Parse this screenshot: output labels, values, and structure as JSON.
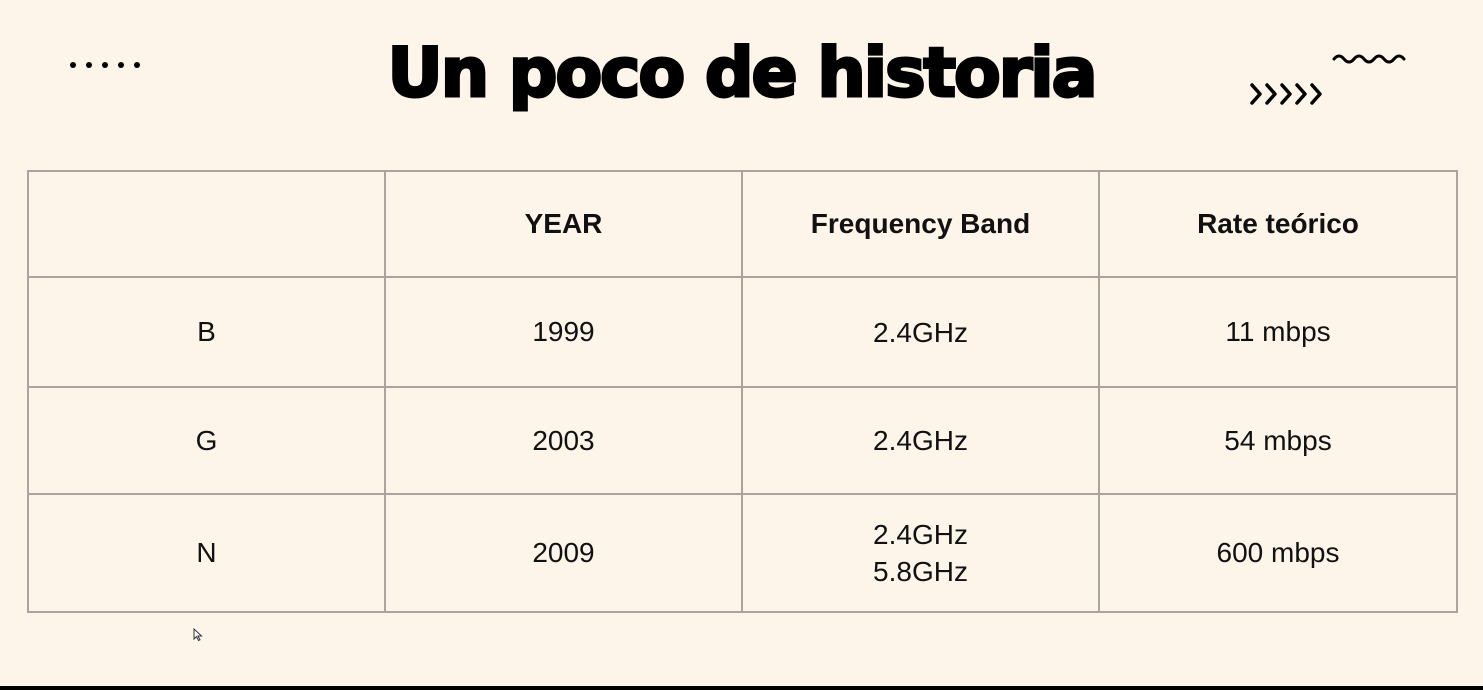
{
  "title": "Un poco de historia",
  "decorations": {
    "left": "dots-decoration",
    "right": "chevrons-and-wave-decoration"
  },
  "table": {
    "headers": [
      "",
      "YEAR",
      "Frequency Band",
      "Rate teórico"
    ],
    "rows": [
      {
        "standard": "B",
        "year": "1999",
        "bands": [
          "2.4GHz"
        ],
        "rate": "11 mbps"
      },
      {
        "standard": "G",
        "year": "2003",
        "bands": [
          "2.4GHz"
        ],
        "rate": "54 mbps"
      },
      {
        "standard": "N",
        "year": "2009",
        "bands": [
          "2.4GHz",
          "5.8GHz"
        ],
        "rate": "600 mbps"
      }
    ]
  }
}
